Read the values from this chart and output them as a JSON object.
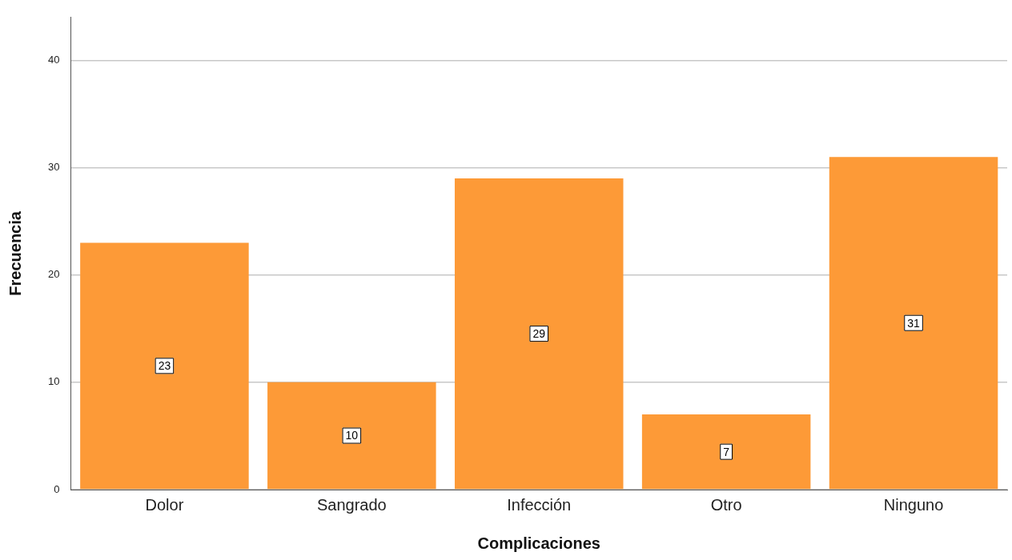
{
  "chart_data": {
    "type": "bar",
    "xlabel": "Complicaciones",
    "ylabel": "Frecuencia",
    "categories": [
      "Dolor",
      "Sangrado",
      "Infección",
      "Otro",
      "Ninguno"
    ],
    "values": [
      23,
      10,
      29,
      7,
      31
    ],
    "color": "#fd9a37",
    "ylim": [
      0,
      44
    ],
    "yticks": [
      0,
      10,
      20,
      30,
      40
    ],
    "grid": "y",
    "data_labels": true,
    "legend": false
  }
}
